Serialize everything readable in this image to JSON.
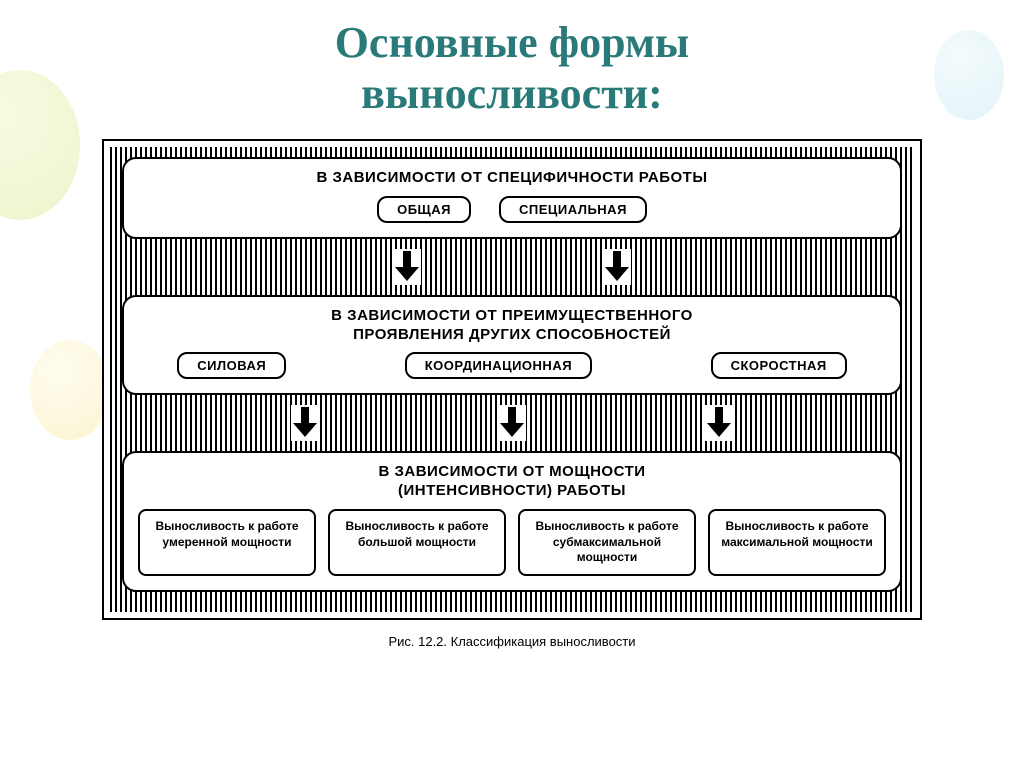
{
  "title_line1": "Основные формы",
  "title_line2": "выносливости:",
  "diagram": {
    "type": "flowchart",
    "background_color": "#ffffff",
    "border_color": "#000000",
    "hatch_pattern": "vertical-stripes",
    "title_fontsize": 15,
    "pill_fontsize": 13,
    "box_fontsize": 12,
    "title_color": "#2a7a7a",
    "block1": {
      "title": "В ЗАВИСИМОСТИ ОТ СПЕЦИФИЧНОСТИ РАБОТЫ",
      "items": [
        "ОБЩАЯ",
        "СПЕЦИАЛЬНАЯ"
      ]
    },
    "block2": {
      "title_line1": "В ЗАВИСИМОСТИ ОТ ПРЕИМУЩЕСТВЕННОГО",
      "title_line2": "ПРОЯВЛЕНИЯ ДРУГИХ СПОСОБНОСТЕЙ",
      "items": [
        "СИЛОВАЯ",
        "КООРДИНАЦИОННАЯ",
        "СКОРОСТНАЯ"
      ]
    },
    "block3": {
      "title_line1": "В ЗАВИСИМОСТИ ОТ МОЩНОСТИ",
      "title_line2": "(ИНТЕНСИВНОСТИ) РАБОТЫ",
      "boxes": [
        "Выносливость к работе умеренной мощности",
        "Выносливость к работе большой мощности",
        "Выносливость к работе субмаксимальной мощности",
        "Выносливость к работе максимальной мощности"
      ]
    }
  },
  "caption": "Рис. 12.2. Классификация выносливости"
}
